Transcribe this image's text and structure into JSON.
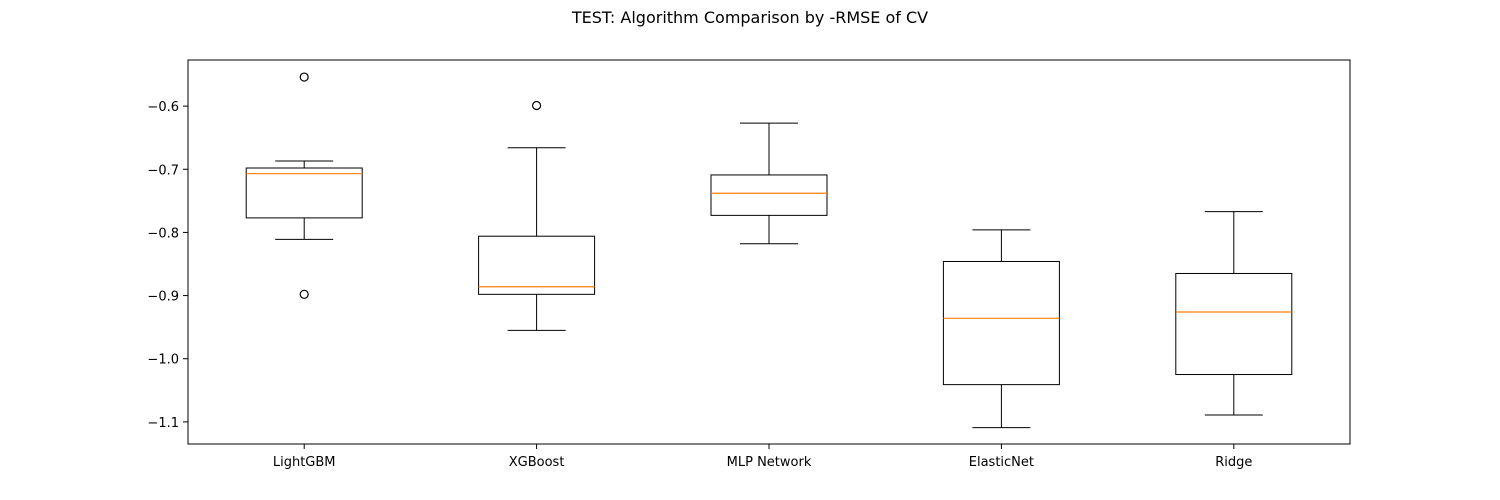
{
  "chart_data": {
    "type": "boxplot",
    "title": "TEST: Algorithm Comparison by -RMSE of CV",
    "xlabel": "",
    "ylabel": "",
    "ylim": [
      -1.135,
      -0.527
    ],
    "yticks": [
      -1.1,
      -1.0,
      -0.9,
      -0.8,
      -0.7,
      -0.6
    ],
    "ytick_labels": [
      "−1.1",
      "−1.0",
      "−0.9",
      "−0.8",
      "−0.7",
      "−0.6"
    ],
    "categories": [
      "LightGBM",
      "XGBoost",
      "MLP Network",
      "ElasticNet",
      "Ridge"
    ],
    "boxes": [
      {
        "label": "LightGBM",
        "whisker_low": -0.811,
        "q1": -0.777,
        "median": -0.707,
        "q3": -0.698,
        "whisker_high": -0.687,
        "outliers": [
          -0.554,
          -0.898
        ]
      },
      {
        "label": "XGBoost",
        "whisker_low": -0.955,
        "q1": -0.898,
        "median": -0.886,
        "q3": -0.806,
        "whisker_high": -0.666,
        "outliers": [
          -0.599
        ]
      },
      {
        "label": "MLP Network",
        "whisker_low": -0.818,
        "q1": -0.773,
        "median": -0.738,
        "q3": -0.709,
        "whisker_high": -0.627,
        "outliers": []
      },
      {
        "label": "ElasticNet",
        "whisker_low": -1.109,
        "q1": -1.041,
        "median": -0.936,
        "q3": -0.846,
        "whisker_high": -0.796,
        "outliers": []
      },
      {
        "label": "Ridge",
        "whisker_low": -1.089,
        "q1": -1.025,
        "median": -0.926,
        "q3": -0.865,
        "whisker_high": -0.767,
        "outliers": []
      }
    ],
    "grid": false,
    "colors": {
      "box": "#000000",
      "median": "#ff7f0e",
      "background": "#ffffff"
    }
  }
}
